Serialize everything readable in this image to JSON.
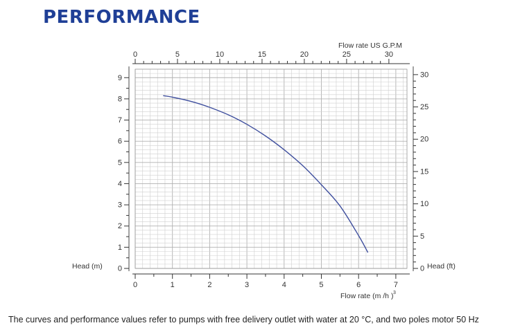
{
  "header": {
    "title": "PERFORMANCE"
  },
  "caption": "The curves and performance values refer to pumps with free delivery outlet with water at 20 °C, and two poles motor 50 Hz",
  "colors": {
    "title": "#1f3f96",
    "curve": "#3f4f9e",
    "grid": "#cfcfcf",
    "grid_major": "#b0b0b0"
  },
  "chart_data": {
    "type": "line",
    "grid": true,
    "xlabel": "Flow rate (m³/h)",
    "xlabel_text": "Flow rate",
    "xlabel_unit": "(m /h )",
    "xlabel_sup": "3",
    "ylabel": "Head (m)",
    "x2label": "Flow rate US  G.P.M",
    "y2label": "Head (ft)",
    "xlim": [
      0,
      7
    ],
    "ylim": [
      0,
      9
    ],
    "x2lim": [
      0,
      30.82
    ],
    "y2lim": [
      0,
      29.53
    ],
    "x_ticks": [
      "0",
      "1",
      "2",
      "3",
      "4",
      "5",
      "6",
      "7"
    ],
    "y_ticks": [
      "0",
      "1",
      "2",
      "3",
      "4",
      "5",
      "6",
      "7",
      "8",
      "9"
    ],
    "x2_ticks": [
      "0",
      "5",
      "10",
      "15",
      "20",
      "25",
      "30"
    ],
    "y2_ticks": [
      "0",
      "5",
      "10",
      "15",
      "20",
      "25",
      "30"
    ],
    "series": [
      {
        "x": [
          0.75,
          1.0,
          1.5,
          2.0,
          2.5,
          3.0,
          3.5,
          4.0,
          4.5,
          5.0,
          5.5,
          6.0,
          6.25
        ],
        "y": [
          8.15,
          8.08,
          7.88,
          7.6,
          7.25,
          6.8,
          6.25,
          5.6,
          4.85,
          3.95,
          2.95,
          1.55,
          0.75
        ]
      }
    ]
  }
}
